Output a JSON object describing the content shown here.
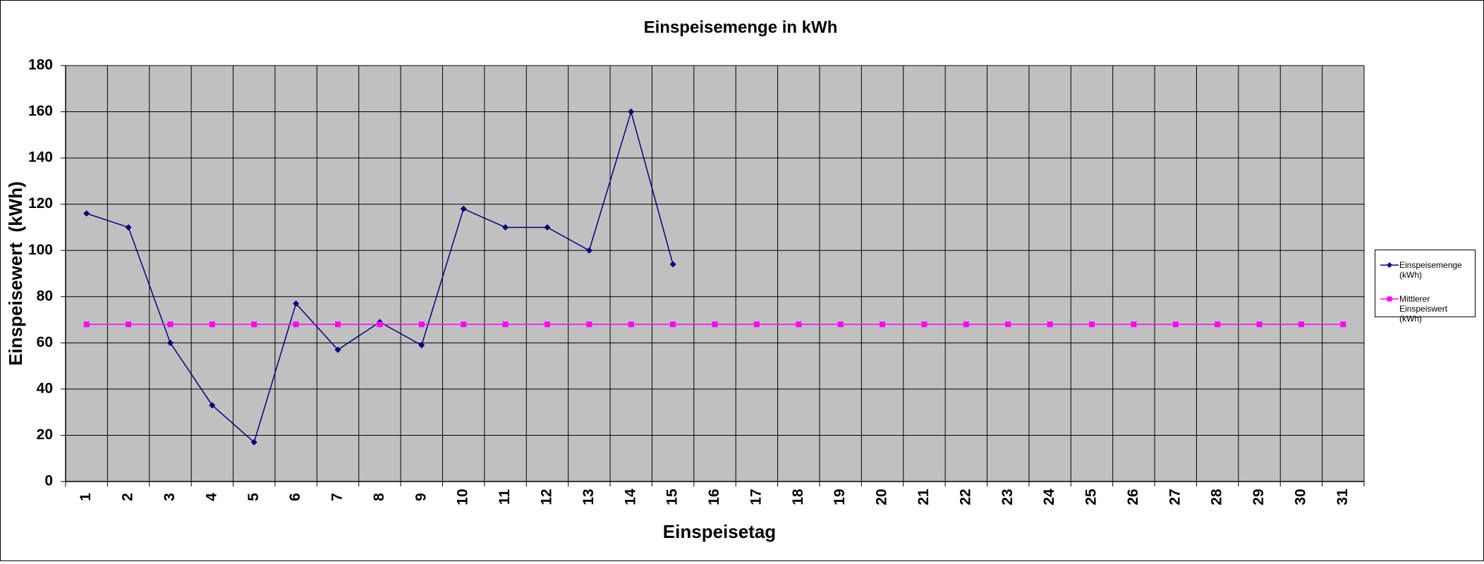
{
  "chart_data": {
    "type": "line",
    "title": "Einspeisemenge in kWh",
    "x_label": "Einspeisetag",
    "y_label": "Einspeisewert  (kWh)",
    "categories": [
      "1",
      "2",
      "3",
      "4",
      "5",
      "6",
      "7",
      "8",
      "9",
      "10",
      "11",
      "12",
      "13",
      "14",
      "15",
      "16",
      "17",
      "18",
      "19",
      "20",
      "21",
      "22",
      "23",
      "24",
      "25",
      "26",
      "27",
      "28",
      "29",
      "30",
      "31"
    ],
    "series": [
      {
        "name": "Einspeisemenge (kWh)",
        "color": "#000080",
        "marker": "diamond",
        "values": [
          116,
          110,
          60,
          33,
          17,
          77,
          57,
          69,
          59,
          118,
          110,
          110,
          100,
          160,
          94,
          null,
          null,
          null,
          null,
          null,
          null,
          null,
          null,
          null,
          null,
          null,
          null,
          null,
          null,
          null,
          null
        ]
      },
      {
        "name": "Mittlerer Einspeiswert (kWh)",
        "color": "#ff00ff",
        "marker": "square",
        "values": [
          68,
          68,
          68,
          68,
          68,
          68,
          68,
          68,
          68,
          68,
          68,
          68,
          68,
          68,
          68,
          68,
          68,
          68,
          68,
          68,
          68,
          68,
          68,
          68,
          68,
          68,
          68,
          68,
          68,
          68,
          68
        ]
      }
    ],
    "ylim": [
      0,
      180
    ],
    "yticks": [
      0,
      20,
      40,
      60,
      80,
      100,
      120,
      140,
      160,
      180
    ],
    "grid": true,
    "plot_background": "#c0c0c0",
    "legend": "right"
  }
}
